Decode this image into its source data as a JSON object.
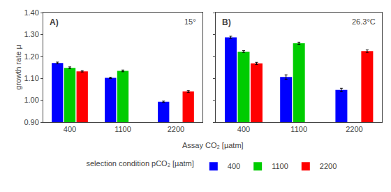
{
  "chart_data": [
    {
      "type": "bar",
      "categories": [
        "400",
        "1100",
        "2200"
      ],
      "series": [
        {
          "name": "400",
          "color": "#0000FF",
          "values": [
            1.17,
            1.102,
            0.993
          ],
          "errors": [
            0.004,
            0.003,
            0.003
          ]
        },
        {
          "name": "1100",
          "color": "#00CC00",
          "values": [
            1.148,
            1.134,
            null
          ],
          "errors": [
            0.004,
            0.004,
            null
          ]
        },
        {
          "name": "2200",
          "color": "#FF0000",
          "values": [
            1.132,
            null,
            1.04
          ],
          "errors": [
            0.003,
            null,
            0.004
          ]
        }
      ],
      "ylabel": "growth rate μ",
      "xlabel": "Assay CO₂ [µatm]",
      "ylim": [
        0.9,
        1.4
      ],
      "yticks": [
        {
          "value": 0.9,
          "label": "0.90"
        },
        {
          "value": 1.0,
          "label": "1.00"
        },
        {
          "value": 1.1,
          "label": "1.10"
        },
        {
          "value": 1.2,
          "label": "1.20"
        },
        {
          "value": 1.3,
          "label": "1.30"
        },
        {
          "value": 1.4,
          "label": "1.40"
        }
      ],
      "grid": false,
      "annotations": [
        "A)",
        "15°"
      ],
      "legend": "bottom",
      "legend_title": "selection condition pCO₂ [µatm]"
    },
    {
      "type": "bar",
      "categories": [
        "400",
        "1100",
        "2200"
      ],
      "series": [
        {
          "name": "400",
          "color": "#0000FF",
          "values": [
            1.287,
            1.106,
            1.047
          ],
          "errors": [
            0.005,
            0.01,
            0.008
          ]
        },
        {
          "name": "1100",
          "color": "#00CC00",
          "values": [
            1.222,
            1.26,
            null
          ],
          "errors": [
            0.004,
            0.005,
            null
          ]
        },
        {
          "name": "2200",
          "color": "#FF0000",
          "values": [
            1.168,
            null,
            1.224
          ],
          "errors": [
            0.005,
            null,
            0.006
          ]
        }
      ],
      "ylim": [
        0.9,
        1.4
      ],
      "yticks": [
        {
          "value": 0.9,
          "label": "0.90"
        },
        {
          "value": 1.0,
          "label": "1.00"
        },
        {
          "value": 1.1,
          "label": "1.10"
        },
        {
          "value": 1.2,
          "label": "1.20"
        },
        {
          "value": 1.3,
          "label": "1.30"
        },
        {
          "value": 1.4,
          "label": "1.40"
        }
      ],
      "grid": false,
      "tick_labels": "x",
      "annotations": [
        "B)",
        "26.3°C"
      ]
    }
  ]
}
